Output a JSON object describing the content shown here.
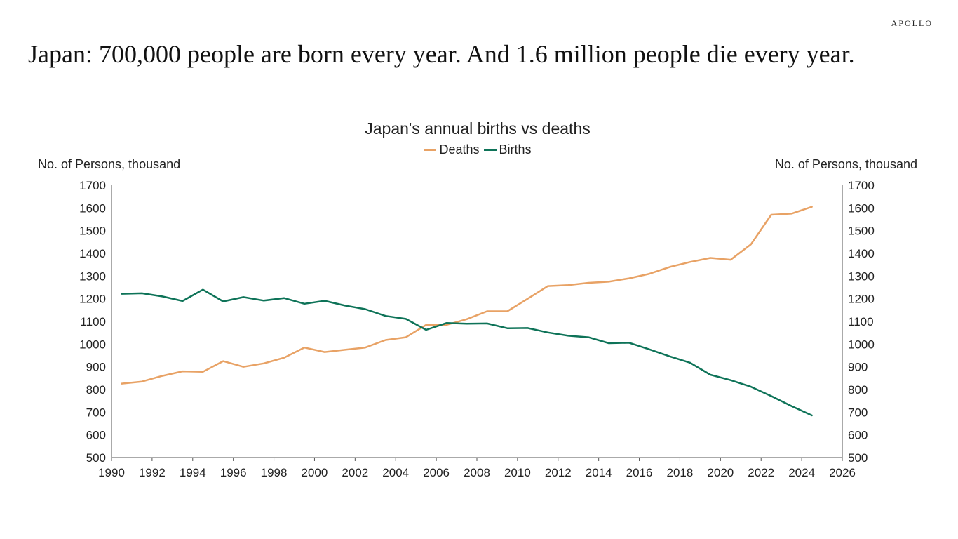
{
  "brand": "APOLLO",
  "headline": "Japan: 700,000 people are born every year. And 1.6 million people die every year.",
  "chart_data": {
    "type": "line",
    "title": "Japan's annual births vs deaths",
    "ylabel_left": "No. of Persons, thousand",
    "ylabel_right": "No. of Persons, thousand",
    "xlim": [
      1990,
      2026
    ],
    "ylim": [
      500,
      1700
    ],
    "x_ticks": [
      1990,
      1992,
      1994,
      1996,
      1998,
      2000,
      2002,
      2004,
      2006,
      2008,
      2010,
      2012,
      2014,
      2016,
      2018,
      2020,
      2022,
      2024,
      2026
    ],
    "y_ticks": [
      500,
      600,
      700,
      800,
      900,
      1000,
      1100,
      1200,
      1300,
      1400,
      1500,
      1600,
      1700
    ],
    "x": [
      1990.5,
      1991.5,
      1992.5,
      1993.5,
      1994.5,
      1995.5,
      1996.5,
      1997.5,
      1998.5,
      1999.5,
      2000.5,
      2001.5,
      2002.5,
      2003.5,
      2004.5,
      2005.5,
      2006.5,
      2007.5,
      2008.5,
      2009.5,
      2010.5,
      2011.5,
      2012.5,
      2013.5,
      2014.5,
      2015.5,
      2016.5,
      2017.5,
      2018.5,
      2019.5,
      2020.5,
      2021.5,
      2022.5,
      2023.5,
      2024.5
    ],
    "series": [
      {
        "name": "Deaths",
        "color": "#e8a265",
        "values": [
          826,
          835,
          860,
          880,
          878,
          925,
          900,
          915,
          940,
          985,
          965,
          975,
          985,
          1018,
          1030,
          1085,
          1085,
          1110,
          1145,
          1145,
          1200,
          1256,
          1260,
          1270,
          1275,
          1290,
          1310,
          1340,
          1362,
          1380,
          1372,
          1440,
          1570,
          1575,
          1605
        ]
      },
      {
        "name": "Births",
        "color": "#0e7358",
        "values": [
          1222,
          1224,
          1210,
          1190,
          1240,
          1188,
          1207,
          1192,
          1203,
          1178,
          1191,
          1170,
          1154,
          1124,
          1111,
          1063,
          1093,
          1090,
          1091,
          1070,
          1071,
          1051,
          1037,
          1030,
          1004,
          1006,
          977,
          946,
          918,
          865,
          841,
          812,
          771,
          727,
          686
        ]
      }
    ]
  }
}
